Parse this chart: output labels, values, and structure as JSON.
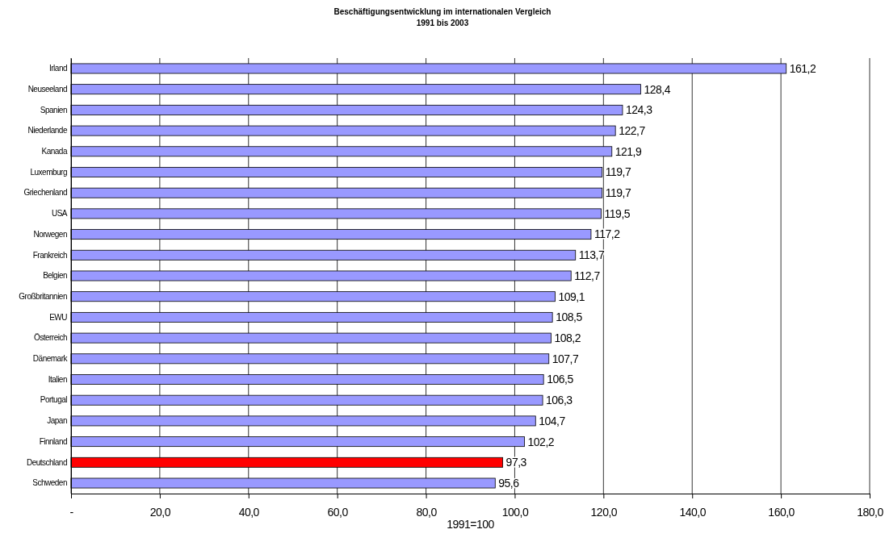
{
  "chart_data": {
    "type": "bar",
    "orientation": "horizontal",
    "title": "Beschäftigungsentwicklung im internationalen Vergleich",
    "subtitle": "1991 bis 2003",
    "xlabel": "1991=100",
    "categories": [
      "Irland",
      "Neuseeland",
      "Spanien",
      "Niederlande",
      "Kanada",
      "Luxemburg",
      "Griechenland",
      "USA",
      "Norwegen",
      "Frankreich",
      "Belgien",
      "Großbritannien",
      "EWU",
      "Österreich",
      "Dänemark",
      "Italien",
      "Portugal",
      "Japan",
      "Finnland",
      "Deutschland",
      "Schweden"
    ],
    "values": [
      161.2,
      128.4,
      124.3,
      122.7,
      121.9,
      119.7,
      119.7,
      119.5,
      117.2,
      113.7,
      112.7,
      109.1,
      108.5,
      108.2,
      107.7,
      106.5,
      106.3,
      104.7,
      102.2,
      97.3,
      95.6
    ],
    "value_labels": [
      "161,2",
      "128,4",
      "124,3",
      "122,7",
      "121,9",
      "119,7",
      "119,7",
      "119,5",
      "117,2",
      "113,7",
      "112,7",
      "109,1",
      "108,5",
      "108,2",
      "107,7",
      "106,5",
      "106,3",
      "104,7",
      "102,2",
      "97,3",
      "95,6"
    ],
    "colors": [
      "#9999ff",
      "#9999ff",
      "#9999ff",
      "#9999ff",
      "#9999ff",
      "#9999ff",
      "#9999ff",
      "#9999ff",
      "#9999ff",
      "#9999ff",
      "#9999ff",
      "#9999ff",
      "#9999ff",
      "#9999ff",
      "#9999ff",
      "#9999ff",
      "#9999ff",
      "#9999ff",
      "#9999ff",
      "#ff0000",
      "#9999ff"
    ],
    "xlim": [
      0,
      180
    ],
    "xticks": [
      {
        "value": 0,
        "label": "-"
      },
      {
        "value": 20,
        "label": "20,0"
      },
      {
        "value": 40,
        "label": "40,0"
      },
      {
        "value": 60,
        "label": "60,0"
      },
      {
        "value": 80,
        "label": "80,0"
      },
      {
        "value": 100,
        "label": "100,0"
      },
      {
        "value": 120,
        "label": "120,0"
      },
      {
        "value": 140,
        "label": "140,0"
      },
      {
        "value": 160,
        "label": "160,0"
      },
      {
        "value": 180,
        "label": "180,0"
      }
    ],
    "grid": "x"
  }
}
